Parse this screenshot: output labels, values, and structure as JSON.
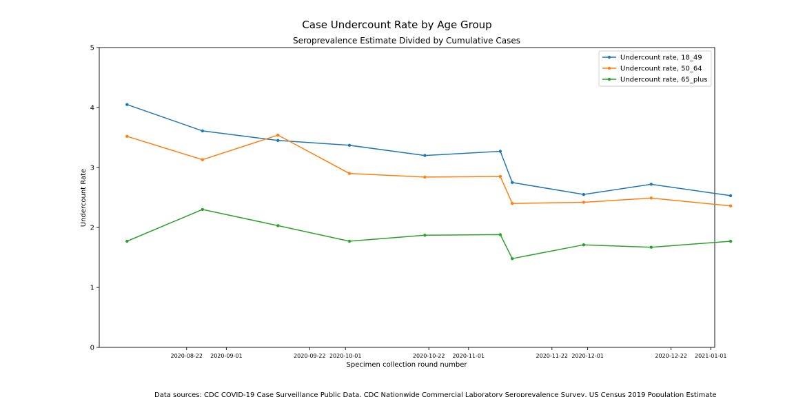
{
  "chart_data": {
    "type": "line",
    "title": "Case Undercount Rate by Age Group",
    "subtitle": "Seroprevalence Estimate Divided by Cumulative Cases",
    "xlabel": "Specimen collection round number",
    "ylabel": "Undercount Rate",
    "ylim": [
      0,
      5
    ],
    "yticks": [
      "0",
      "1",
      "2",
      "3",
      "4",
      "5"
    ],
    "xlim": [
      "2020-07-31",
      "2021-01-02"
    ],
    "xticks": [
      "2020-08-22",
      "2020-09-01",
      "2020-09-22",
      "2020-10-01",
      "2020-10-22",
      "2020-11-01",
      "2020-11-22",
      "2020-12-01",
      "2020-12-22",
      "2021-01-01"
    ],
    "x": [
      "2020-08-07",
      "2020-08-26",
      "2020-09-14",
      "2020-10-02",
      "2020-10-21",
      "2020-11-09",
      "2020-11-12",
      "2020-11-30",
      "2020-12-17",
      "2021-01-06"
    ],
    "grid": false,
    "legend_position": "top-right",
    "series": [
      {
        "name": "Undercount rate, 18_49",
        "color": "#1f77b4",
        "values": [
          4.05,
          3.61,
          3.45,
          3.37,
          3.2,
          3.27,
          2.75,
          2.55,
          2.72,
          2.53
        ]
      },
      {
        "name": "Undercount rate, 50_64",
        "color": "#ff7f0e",
        "values": [
          3.52,
          3.13,
          3.54,
          2.9,
          2.84,
          2.85,
          2.4,
          2.42,
          2.49,
          2.36
        ]
      },
      {
        "name": "Undercount rate, 65_plus",
        "color": "#2ca02c",
        "values": [
          1.77,
          2.3,
          2.03,
          1.77,
          1.87,
          1.88,
          1.48,
          1.71,
          1.67,
          1.77
        ]
      }
    ],
    "footnote": "Data sources: CDC COVID-19 Case Surveillance Public Data, CDC Nationwide Commercial Laboratory Seroprevalence Survey, US Census 2019 Population Estimate"
  }
}
